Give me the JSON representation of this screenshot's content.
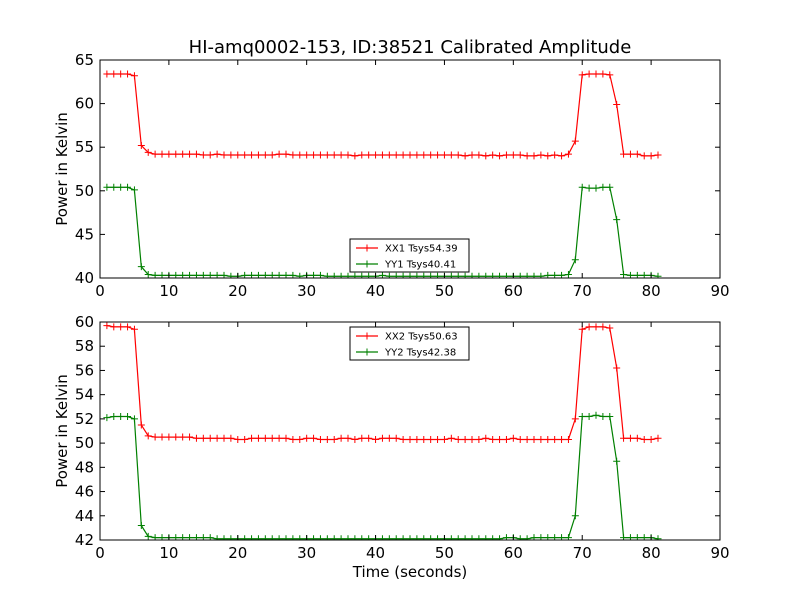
{
  "chart_data": [
    {
      "type": "line",
      "title": "HI-amq0002-153, ID:38521 Calibrated Amplitude",
      "xlabel": "",
      "ylabel": "Power in Kelvin",
      "xlim": [
        0,
        90
      ],
      "ylim": [
        40,
        65
      ],
      "xticks": [
        "0",
        "10",
        "20",
        "30",
        "40",
        "50",
        "60",
        "70",
        "80",
        "90"
      ],
      "yticks": [
        "40",
        "45",
        "50",
        "55",
        "60",
        "65"
      ],
      "legend_position": "lower-center",
      "grid": false,
      "series": [
        {
          "name": "XX1 Tsys54.39",
          "color": "#ff0000",
          "x": [
            1,
            2,
            3,
            4,
            5,
            6,
            7,
            8,
            9,
            10,
            11,
            12,
            13,
            14,
            15,
            16,
            17,
            18,
            19,
            20,
            21,
            22,
            23,
            24,
            25,
            26,
            27,
            28,
            29,
            30,
            31,
            32,
            33,
            34,
            35,
            36,
            37,
            38,
            39,
            40,
            41,
            42,
            43,
            44,
            45,
            46,
            47,
            48,
            49,
            50,
            51,
            52,
            53,
            54,
            55,
            56,
            57,
            58,
            59,
            60,
            61,
            62,
            63,
            64,
            65,
            66,
            67,
            68,
            69,
            70,
            71,
            72,
            73,
            74,
            75,
            76,
            77,
            78,
            79,
            80,
            81
          ],
          "y": [
            63.4,
            63.4,
            63.4,
            63.4,
            63.2,
            55.2,
            54.4,
            54.2,
            54.2,
            54.2,
            54.2,
            54.2,
            54.2,
            54.2,
            54.1,
            54.1,
            54.2,
            54.1,
            54.1,
            54.1,
            54.1,
            54.1,
            54.1,
            54.1,
            54.1,
            54.2,
            54.2,
            54.1,
            54.1,
            54.1,
            54.1,
            54.1,
            54.1,
            54.1,
            54.1,
            54.1,
            54.0,
            54.1,
            54.1,
            54.1,
            54.1,
            54.1,
            54.1,
            54.1,
            54.1,
            54.1,
            54.1,
            54.1,
            54.1,
            54.1,
            54.1,
            54.1,
            54.0,
            54.1,
            54.1,
            54.0,
            54.1,
            54.0,
            54.1,
            54.1,
            54.1,
            54.0,
            54.0,
            54.1,
            54.0,
            54.1,
            54.0,
            54.2,
            55.7,
            63.3,
            63.4,
            63.4,
            63.4,
            63.3,
            59.9,
            54.2,
            54.2,
            54.2,
            54.0,
            54.0,
            54.1
          ]
        },
        {
          "name": "YY1 Tsys40.41",
          "color": "#008000",
          "x": [
            1,
            2,
            3,
            4,
            5,
            6,
            7,
            8,
            9,
            10,
            11,
            12,
            13,
            14,
            15,
            16,
            17,
            18,
            19,
            20,
            21,
            22,
            23,
            24,
            25,
            26,
            27,
            28,
            29,
            30,
            31,
            32,
            33,
            34,
            35,
            36,
            37,
            38,
            39,
            40,
            41,
            42,
            43,
            44,
            45,
            46,
            47,
            48,
            49,
            50,
            51,
            52,
            53,
            54,
            55,
            56,
            57,
            58,
            59,
            60,
            61,
            62,
            63,
            64,
            65,
            66,
            67,
            68,
            69,
            70,
            71,
            72,
            73,
            74,
            75,
            76,
            77,
            78,
            79,
            80,
            81
          ],
          "y": [
            50.4,
            50.4,
            50.4,
            50.4,
            50.1,
            41.3,
            40.4,
            40.3,
            40.3,
            40.3,
            40.3,
            40.3,
            40.3,
            40.3,
            40.3,
            40.3,
            40.3,
            40.3,
            40.2,
            40.2,
            40.3,
            40.3,
            40.3,
            40.3,
            40.3,
            40.3,
            40.3,
            40.3,
            40.2,
            40.3,
            40.3,
            40.3,
            40.2,
            40.2,
            40.2,
            40.2,
            40.2,
            40.2,
            40.2,
            40.2,
            40.3,
            40.2,
            40.2,
            40.2,
            40.2,
            40.2,
            40.2,
            40.2,
            40.2,
            40.2,
            40.2,
            40.2,
            40.2,
            40.2,
            40.2,
            40.2,
            40.2,
            40.2,
            40.2,
            40.2,
            40.2,
            40.2,
            40.2,
            40.2,
            40.3,
            40.3,
            40.3,
            40.4,
            42.1,
            50.4,
            50.3,
            50.3,
            50.4,
            50.4,
            46.7,
            40.4,
            40.3,
            40.3,
            40.3,
            40.3,
            40.2
          ]
        }
      ]
    },
    {
      "type": "line",
      "title": "",
      "xlabel": "Time (seconds)",
      "ylabel": "Power in Kelvin",
      "xlim": [
        0,
        90
      ],
      "ylim": [
        42,
        60
      ],
      "xticks": [
        "0",
        "10",
        "20",
        "30",
        "40",
        "50",
        "60",
        "70",
        "80",
        "90"
      ],
      "yticks": [
        "42",
        "44",
        "46",
        "48",
        "50",
        "52",
        "54",
        "56",
        "58",
        "60"
      ],
      "legend_position": "upper-center",
      "grid": false,
      "series": [
        {
          "name": "XX2 Tsys50.63",
          "color": "#ff0000",
          "x": [
            1,
            2,
            3,
            4,
            5,
            6,
            7,
            8,
            9,
            10,
            11,
            12,
            13,
            14,
            15,
            16,
            17,
            18,
            19,
            20,
            21,
            22,
            23,
            24,
            25,
            26,
            27,
            28,
            29,
            30,
            31,
            32,
            33,
            34,
            35,
            36,
            37,
            38,
            39,
            40,
            41,
            42,
            43,
            44,
            45,
            46,
            47,
            48,
            49,
            50,
            51,
            52,
            53,
            54,
            55,
            56,
            57,
            58,
            59,
            60,
            61,
            62,
            63,
            64,
            65,
            66,
            67,
            68,
            69,
            70,
            71,
            72,
            73,
            74,
            75,
            76,
            77,
            78,
            79,
            80,
            81
          ],
          "y": [
            59.7,
            59.6,
            59.6,
            59.6,
            59.4,
            51.5,
            50.6,
            50.5,
            50.5,
            50.5,
            50.5,
            50.5,
            50.5,
            50.4,
            50.4,
            50.4,
            50.4,
            50.4,
            50.4,
            50.3,
            50.3,
            50.4,
            50.4,
            50.4,
            50.4,
            50.4,
            50.4,
            50.3,
            50.3,
            50.4,
            50.4,
            50.3,
            50.3,
            50.3,
            50.4,
            50.4,
            50.3,
            50.4,
            50.4,
            50.3,
            50.4,
            50.4,
            50.4,
            50.3,
            50.3,
            50.3,
            50.3,
            50.3,
            50.3,
            50.3,
            50.4,
            50.3,
            50.3,
            50.3,
            50.3,
            50.4,
            50.3,
            50.3,
            50.3,
            50.4,
            50.3,
            50.3,
            50.3,
            50.3,
            50.3,
            50.3,
            50.3,
            50.3,
            52.0,
            59.4,
            59.6,
            59.6,
            59.6,
            59.5,
            56.2,
            50.4,
            50.4,
            50.4,
            50.3,
            50.3,
            50.4
          ]
        },
        {
          "name": "YY2 Tsys42.38",
          "color": "#008000",
          "x": [
            1,
            2,
            3,
            4,
            5,
            6,
            7,
            8,
            9,
            10,
            11,
            12,
            13,
            14,
            15,
            16,
            17,
            18,
            19,
            20,
            21,
            22,
            23,
            24,
            25,
            26,
            27,
            28,
            29,
            30,
            31,
            32,
            33,
            34,
            35,
            36,
            37,
            38,
            39,
            40,
            41,
            42,
            43,
            44,
            45,
            46,
            47,
            48,
            49,
            50,
            51,
            52,
            53,
            54,
            55,
            56,
            57,
            58,
            59,
            60,
            61,
            62,
            63,
            64,
            65,
            66,
            67,
            68,
            69,
            70,
            71,
            72,
            73,
            74,
            75,
            76,
            77,
            78,
            79,
            80,
            81
          ],
          "y": [
            52.1,
            52.2,
            52.2,
            52.2,
            52.0,
            43.2,
            42.3,
            42.2,
            42.2,
            42.2,
            42.2,
            42.2,
            42.2,
            42.2,
            42.2,
            42.2,
            42.1,
            42.1,
            42.1,
            42.1,
            42.1,
            42.1,
            42.1,
            42.1,
            42.1,
            42.1,
            42.1,
            42.1,
            42.1,
            42.1,
            42.1,
            42.1,
            42.1,
            42.1,
            42.1,
            42.1,
            42.1,
            42.1,
            42.1,
            42.1,
            42.1,
            42.1,
            42.1,
            42.1,
            42.1,
            42.1,
            42.1,
            42.1,
            42.1,
            42.1,
            42.1,
            42.1,
            42.1,
            42.1,
            42.1,
            42.1,
            42.1,
            42.1,
            42.2,
            42.2,
            42.1,
            42.1,
            42.2,
            42.2,
            42.2,
            42.2,
            42.2,
            42.2,
            44.0,
            52.2,
            52.2,
            52.3,
            52.2,
            52.2,
            48.5,
            42.2,
            42.2,
            42.2,
            42.2,
            42.2,
            42.1
          ]
        }
      ]
    }
  ]
}
